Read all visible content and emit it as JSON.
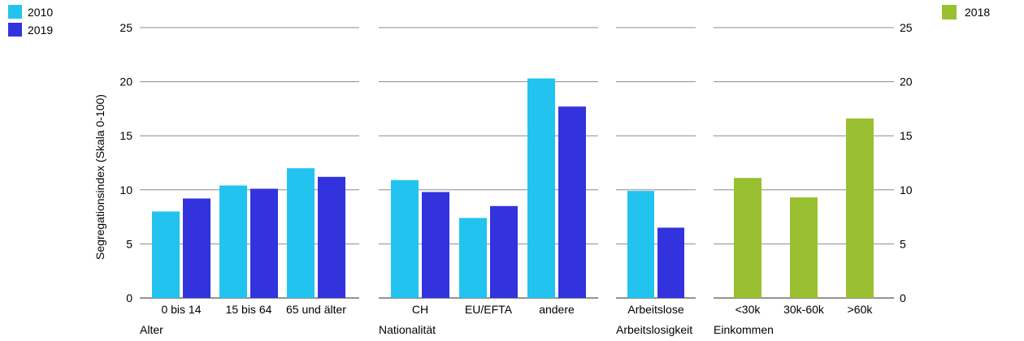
{
  "chart_data": {
    "type": "bar",
    "ylabel": "Segregationsindex (Skala 0-100)",
    "ylim": [
      0,
      25
    ],
    "yticks": [
      0,
      5,
      10,
      15,
      20,
      25
    ],
    "grid": true,
    "legend_left": [
      {
        "name": "2010",
        "color": "#22c4ef"
      },
      {
        "name": "2019",
        "color": "#3333dd"
      }
    ],
    "legend_right": [
      {
        "name": "2018",
        "color": "#99c030"
      }
    ],
    "groups": [
      {
        "label": "Alter",
        "categories": [
          "0 bis 14",
          "15 bis 64",
          "65 und älter"
        ],
        "series": [
          {
            "name": "2010",
            "color": "#22c4ef",
            "values": [
              8.0,
              10.4,
              12.0
            ]
          },
          {
            "name": "2019",
            "color": "#3333dd",
            "values": [
              9.2,
              10.1,
              11.2
            ]
          }
        ]
      },
      {
        "label": "Nationalität",
        "categories": [
          "CH",
          "EU/EFTA",
          "andere"
        ],
        "series": [
          {
            "name": "2010",
            "color": "#22c4ef",
            "values": [
              10.9,
              7.4,
              20.3
            ]
          },
          {
            "name": "2019",
            "color": "#3333dd",
            "values": [
              9.8,
              8.5,
              17.7
            ]
          }
        ]
      },
      {
        "label": "Arbeitslosigkeit",
        "categories": [
          "Arbeitslose"
        ],
        "series": [
          {
            "name": "2010",
            "color": "#22c4ef",
            "values": [
              9.9
            ]
          },
          {
            "name": "2019",
            "color": "#3333dd",
            "values": [
              6.5
            ]
          }
        ]
      },
      {
        "label": "Einkommen",
        "categories": [
          "<30k",
          "30k-60k",
          ">60k"
        ],
        "series": [
          {
            "name": "2018",
            "color": "#99c030",
            "values": [
              11.1,
              9.3,
              16.6
            ]
          }
        ]
      }
    ]
  }
}
